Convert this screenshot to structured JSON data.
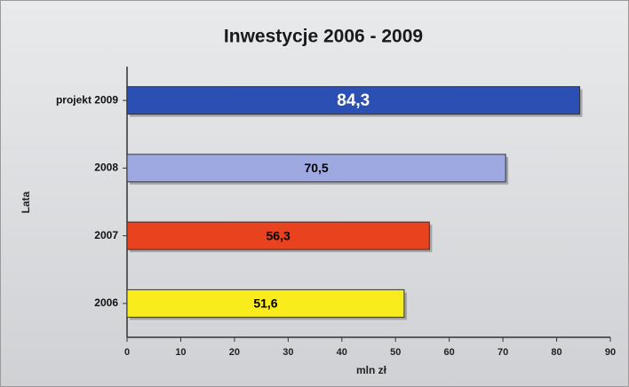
{
  "chart_data": {
    "type": "hbar",
    "title": "Inwestycje 2006 - 2009",
    "x_label": "mln zł",
    "y_label": "Lata",
    "categories": [
      "projekt 2009",
      "2008",
      "2007",
      "2006"
    ],
    "values": [
      84.3,
      70.5,
      56.3,
      51.6
    ],
    "value_labels": [
      "84,3",
      "70,5",
      "56,3",
      "51,6"
    ],
    "colors": [
      "#2b4fb3",
      "#9ea9e2",
      "#e8421e",
      "#f8ec1c"
    ],
    "label_colors": [
      "#ffffff",
      "#000000",
      "#000000",
      "#000000"
    ],
    "xlim": [
      0,
      90
    ],
    "xticks": [
      0,
      10,
      20,
      30,
      40,
      50,
      60,
      70,
      80,
      90
    ]
  }
}
